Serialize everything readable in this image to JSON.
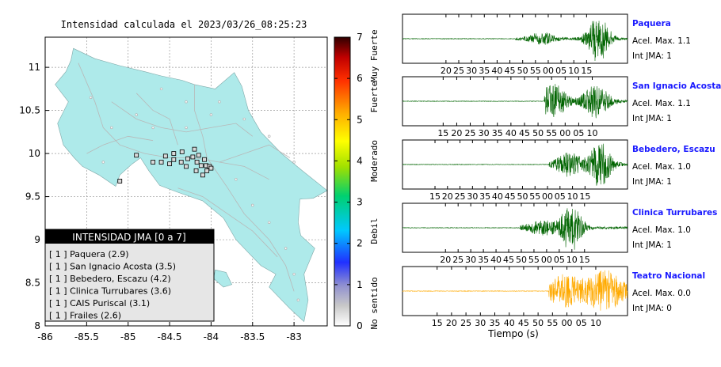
{
  "map": {
    "title": "Intensidad calculada el 2023/03/26_08:25:23",
    "x_ticks": [
      "-86",
      "-85.5",
      "-85",
      "-84.5",
      "-84",
      "-83.5",
      "-83"
    ],
    "y_ticks": [
      "11",
      "10.5",
      "10",
      "9.5",
      "9",
      "8.5",
      "8"
    ],
    "xlim": [
      -86,
      -82.6
    ],
    "ylim": [
      8,
      11.35
    ],
    "land_color": "#aeeaea",
    "legend": {
      "title": "INTENSIDAD JMA [0 a 7]",
      "entries": [
        "[ 1 ]  Paquera (2.9)",
        "[ 1 ]  San Ignacio Acosta (3.5)",
        "[ 1 ]  Bebedero, Escazu (4.2)",
        "[ 1 ]  Clinica Turrubares (3.6)",
        "[ 1 ]  CAIS Puriscal (3.1)",
        "[ 1 ]  Frailes (2.6)"
      ]
    },
    "stations": [
      [
        -84.55,
        9.97
      ],
      [
        -84.45,
        10.0
      ],
      [
        -84.35,
        10.02
      ],
      [
        -84.45,
        9.93
      ],
      [
        -84.36,
        9.9
      ],
      [
        -84.28,
        9.94
      ],
      [
        -84.22,
        9.96
      ],
      [
        -84.17,
        9.9
      ],
      [
        -84.12,
        9.86
      ],
      [
        -84.06,
        9.86
      ],
      [
        -84.02,
        9.85
      ],
      [
        -84.3,
        9.85
      ],
      [
        -84.18,
        9.8
      ],
      [
        -84.05,
        9.8
      ],
      [
        -84.0,
        9.83
      ],
      [
        -84.6,
        9.9
      ],
      [
        -84.5,
        9.88
      ],
      [
        -84.2,
        10.05
      ],
      [
        -84.15,
        9.98
      ],
      [
        -84.08,
        9.93
      ],
      [
        -84.1,
        9.75
      ],
      [
        -84.9,
        9.98
      ],
      [
        -85.1,
        9.68
      ],
      [
        -84.7,
        9.9
      ]
    ]
  },
  "colorbar": {
    "ticks": [
      "0",
      "1",
      "2",
      "3",
      "4",
      "5",
      "6",
      "7"
    ],
    "labels": [
      "No sentido",
      "Debil",
      "Moderado",
      "Fuerte",
      "Muy Fuerte"
    ],
    "scale": [
      0,
      7
    ]
  },
  "traces": {
    "xlabel": "Tiempo (s)",
    "panels": [
      {
        "name": "Paquera",
        "acel": "Acel. Max. 1.1",
        "int": "Int JMA: 1",
        "color": "#006400",
        "ticks": [
          "20",
          "25",
          "30",
          "35",
          "40",
          "45",
          "50",
          "55",
          "00",
          "05",
          "10",
          "15"
        ],
        "tick_start": 20,
        "tick_range": [
          17,
          16
        ],
        "onset": 0.5,
        "bursts": [
          [
            0.62,
            0.25,
            0.06
          ],
          [
            0.87,
            1.0,
            0.05
          ]
        ]
      },
      {
        "name": "San Ignacio Acosta",
        "acel": "Acel. Max. 1.1",
        "int": "Int JMA: 1",
        "color": "#006400",
        "ticks": [
          "15",
          "20",
          "25",
          "30",
          "35",
          "40",
          "45",
          "50",
          "55",
          "00",
          "05",
          "10"
        ],
        "tick_start": 15,
        "tick_range": [
          15,
          13
        ],
        "onset": 0.63,
        "bursts": [
          [
            0.67,
            0.75,
            0.06
          ],
          [
            0.86,
            0.7,
            0.06
          ]
        ]
      },
      {
        "name": "Bebedero, Escazu",
        "acel": "Acel. Max. 1.0",
        "int": "Int JMA: 1",
        "color": "#006400",
        "ticks": [
          "15",
          "20",
          "25",
          "30",
          "35",
          "40",
          "45",
          "50",
          "55",
          "00",
          "05",
          "10",
          "15"
        ],
        "tick_start": 15,
        "tick_range": [
          13,
          17
        ],
        "onset": 0.65,
        "bursts": [
          [
            0.74,
            0.5,
            0.06
          ],
          [
            0.88,
            1.0,
            0.05
          ]
        ]
      },
      {
        "name": "Clinica Turrubares",
        "acel": "Acel. Max. 1.0",
        "int": "Int JMA: 1",
        "color": "#006400",
        "ticks": [
          "20",
          "25",
          "30",
          "35",
          "40",
          "45",
          "50",
          "55",
          "00",
          "05",
          "10",
          "15"
        ],
        "tick_start": 20,
        "tick_range": [
          17,
          17
        ],
        "onset": 0.52,
        "bursts": [
          [
            0.62,
            0.3,
            0.07
          ],
          [
            0.75,
            1.0,
            0.05
          ]
        ]
      },
      {
        "name": "Teatro Nacional",
        "acel": "Acel. Max. 0.0",
        "int": "Int JMA: 0",
        "color": "#ffaa00",
        "ticks": [
          "15",
          "20",
          "25",
          "30",
          "35",
          "40",
          "45",
          "50",
          "55",
          "00",
          "05",
          "10"
        ],
        "tick_start": 15,
        "tick_range": [
          12,
          11
        ],
        "onset": 0.65,
        "bursts": [
          [
            0.72,
            0.7,
            0.08
          ],
          [
            0.9,
            0.9,
            0.09
          ]
        ]
      }
    ]
  }
}
